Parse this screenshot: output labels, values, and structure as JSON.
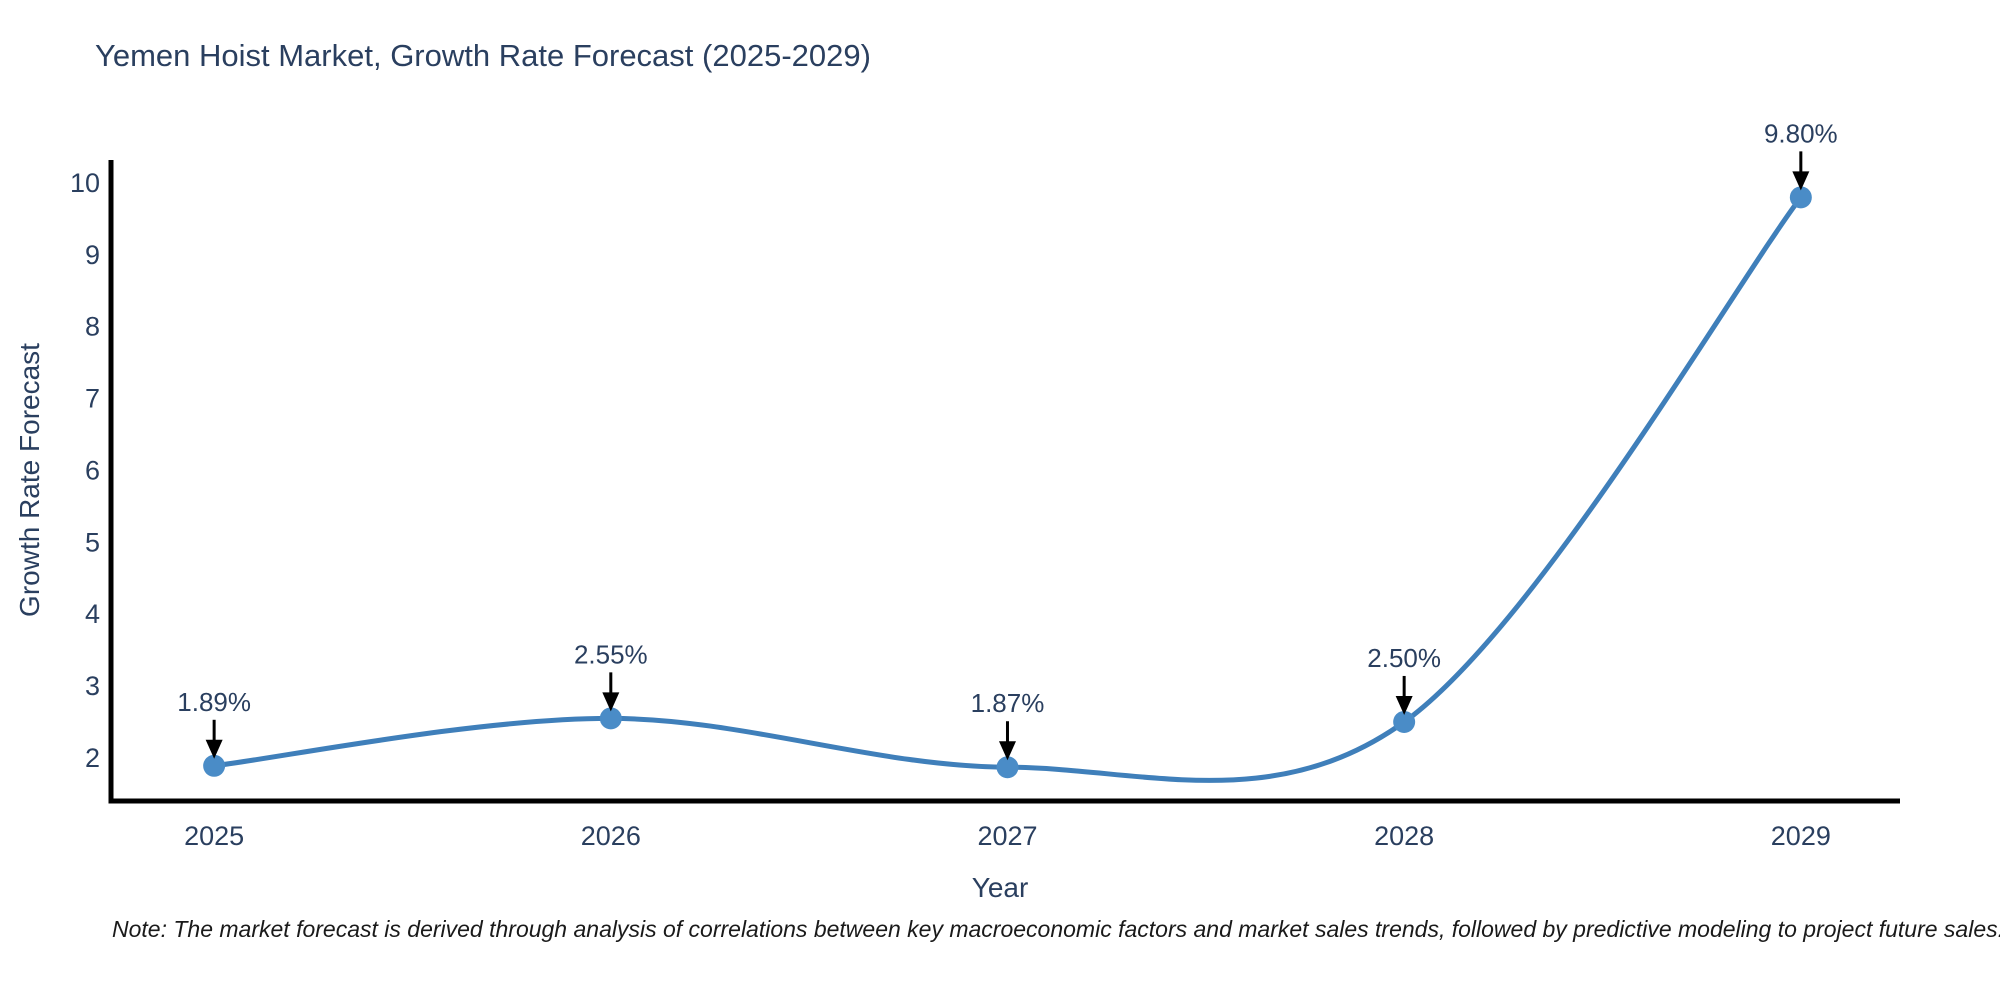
{
  "chart_data": {
    "type": "line",
    "title": "Yemen Hoist Market, Growth Rate Forecast (2025-2029)",
    "xlabel": "Year",
    "ylabel": "Growth Rate Forecast",
    "note": "Note: The market forecast is derived through analysis of correlations between key macroeconomic factors and market sales trends, followed by predictive modeling to project future sales.",
    "x": [
      2025,
      2026,
      2027,
      2028,
      2029
    ],
    "series": [
      {
        "name": "Growth Rate Forecast",
        "values": [
          1.89,
          2.55,
          1.87,
          2.5,
          9.8
        ]
      }
    ],
    "point_labels": [
      "1.89%",
      "2.55%",
      "1.87%",
      "2.50%",
      "9.80%"
    ],
    "xticks": [
      "2025",
      "2026",
      "2027",
      "2028",
      "2029"
    ],
    "yticks": [
      2,
      3,
      4,
      5,
      6,
      7,
      8,
      9,
      10
    ],
    "xlim": [
      2024.74,
      2029.25
    ],
    "ylim": [
      1.4,
      10.32
    ],
    "grid": false,
    "legend": false,
    "line_shape": "spline",
    "colors": {
      "line": "#3f7fba",
      "marker": "#4a8cc7",
      "axis": "#000000",
      "tick_text": "#2a3f5f",
      "annotation_arrow": "#000000",
      "title_text": "#2a3f5f"
    }
  }
}
